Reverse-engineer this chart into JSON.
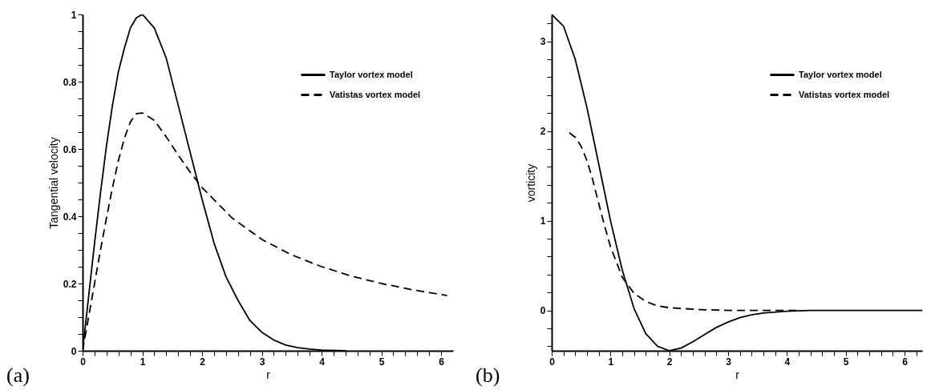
{
  "chart_data": [
    {
      "type": "line",
      "xlabel": "r",
      "ylabel": "Tangential velocity",
      "annotations": [
        "(a)"
      ],
      "legend": "top right",
      "grid": false,
      "marker": "none",
      "xlim": [
        0,
        6.2
      ],
      "ylim": [
        0,
        1
      ],
      "xticks": [
        0,
        {
          "value": 0.2,
          "label": null
        },
        {
          "value": 0.4,
          "label": null
        },
        {
          "value": 0.6,
          "label": null
        },
        {
          "value": 0.8,
          "label": null
        },
        1,
        {
          "value": 1.2,
          "label": null
        },
        {
          "value": 1.4,
          "label": null
        },
        {
          "value": 1.6,
          "label": null
        },
        {
          "value": 1.8,
          "label": null
        },
        2,
        {
          "value": 2.2,
          "label": null
        },
        {
          "value": 2.4,
          "label": null
        },
        {
          "value": 2.6,
          "label": null
        },
        {
          "value": 2.8,
          "label": null
        },
        3,
        {
          "value": 3.2,
          "label": null
        },
        {
          "value": 3.4,
          "label": null
        },
        {
          "value": 3.6,
          "label": null
        },
        {
          "value": 3.8,
          "label": null
        },
        4,
        {
          "value": 4.2,
          "label": null
        },
        {
          "value": 4.4,
          "label": null
        },
        {
          "value": 4.6,
          "label": null
        },
        {
          "value": 4.8,
          "label": null
        },
        5,
        {
          "value": 5.2,
          "label": null
        },
        {
          "value": 5.4,
          "label": null
        },
        {
          "value": 5.6,
          "label": null
        },
        {
          "value": 5.8,
          "label": null
        },
        6
      ],
      "yticks": [
        0,
        {
          "value": 0.05,
          "label": null
        },
        {
          "value": 0.1,
          "label": null
        },
        {
          "value": 0.15,
          "label": null
        },
        0.2,
        {
          "value": 0.25,
          "label": null
        },
        {
          "value": 0.3,
          "label": null
        },
        {
          "value": 0.35,
          "label": null
        },
        0.4,
        {
          "value": 0.45,
          "label": null
        },
        {
          "value": 0.5,
          "label": null
        },
        {
          "value": 0.55,
          "label": null
        },
        0.6,
        {
          "value": 0.65,
          "label": null
        },
        {
          "value": 0.7,
          "label": null
        },
        {
          "value": 0.75,
          "label": null
        },
        0.8,
        {
          "value": 0.85,
          "label": null
        },
        {
          "value": 0.9,
          "label": null
        },
        {
          "value": 0.95,
          "label": null
        },
        1
      ],
      "series": [
        {
          "name": "Taylor vortex model",
          "color": "#000000",
          "line_style": "solid",
          "x": [
            0,
            0.1,
            0.2,
            0.3,
            0.4,
            0.5,
            0.6,
            0.7,
            0.8,
            0.9,
            1,
            1.2,
            1.4,
            1.6,
            1.8,
            2,
            2.2,
            2.4,
            2.6,
            2.8,
            3,
            3.2,
            3.4,
            3.6,
            3.8,
            4,
            4.4
          ],
          "values": [
            0,
            0.16,
            0.32,
            0.47,
            0.61,
            0.73,
            0.83,
            0.9,
            0.96,
            0.99,
            1,
            0.96,
            0.87,
            0.73,
            0.59,
            0.45,
            0.32,
            0.22,
            0.15,
            0.09,
            0.055,
            0.032,
            0.017,
            0.009,
            0.005,
            0.002,
            0
          ]
        },
        {
          "name": "Vatistas vortex model",
          "color": "#000000",
          "line_style": "dashed",
          "x": [
            0,
            0.1,
            0.2,
            0.3,
            0.4,
            0.5,
            0.6,
            0.7,
            0.8,
            0.9,
            1,
            1.2,
            1.4,
            1.6,
            1.8,
            2,
            2.5,
            3,
            3.5,
            4,
            4.5,
            5,
            5.5,
            6,
            6.1
          ],
          "values": [
            0,
            0.1,
            0.2,
            0.3,
            0.395,
            0.485,
            0.566,
            0.632,
            0.68,
            0.705,
            0.707,
            0.685,
            0.636,
            0.582,
            0.531,
            0.485,
            0.395,
            0.331,
            0.285,
            0.25,
            0.222,
            0.2,
            0.182,
            0.167,
            0.164
          ]
        }
      ]
    },
    {
      "type": "line",
      "xlabel": "r",
      "ylabel": "vorticity",
      "annotations": [
        "(b)"
      ],
      "legend": "top right",
      "grid": false,
      "marker": "none",
      "xlim": [
        0,
        6.3
      ],
      "ylim": [
        -0.45,
        3.3
      ],
      "xticks": [
        0,
        {
          "value": 0.2,
          "label": null
        },
        {
          "value": 0.4,
          "label": null
        },
        {
          "value": 0.6,
          "label": null
        },
        {
          "value": 0.8,
          "label": null
        },
        1,
        {
          "value": 1.2,
          "label": null
        },
        {
          "value": 1.4,
          "label": null
        },
        {
          "value": 1.6,
          "label": null
        },
        {
          "value": 1.8,
          "label": null
        },
        2,
        {
          "value": 2.2,
          "label": null
        },
        {
          "value": 2.4,
          "label": null
        },
        {
          "value": 2.6,
          "label": null
        },
        {
          "value": 2.8,
          "label": null
        },
        3,
        {
          "value": 3.2,
          "label": null
        },
        {
          "value": 3.4,
          "label": null
        },
        {
          "value": 3.6,
          "label": null
        },
        {
          "value": 3.8,
          "label": null
        },
        4,
        {
          "value": 4.2,
          "label": null
        },
        {
          "value": 4.4,
          "label": null
        },
        {
          "value": 4.6,
          "label": null
        },
        {
          "value": 4.8,
          "label": null
        },
        5,
        {
          "value": 5.2,
          "label": null
        },
        {
          "value": 5.4,
          "label": null
        },
        {
          "value": 5.6,
          "label": null
        },
        {
          "value": 5.8,
          "label": null
        },
        6,
        {
          "value": 6.2,
          "label": null
        }
      ],
      "yticks": [
        {
          "value": -0.4,
          "label": null
        },
        {
          "value": -0.2,
          "label": null
        },
        0,
        {
          "value": 0.2,
          "label": null
        },
        {
          "value": 0.4,
          "label": null
        },
        {
          "value": 0.6,
          "label": null
        },
        {
          "value": 0.8,
          "label": null
        },
        1,
        {
          "value": 1.2,
          "label": null
        },
        {
          "value": 1.4,
          "label": null
        },
        {
          "value": 1.6,
          "label": null
        },
        {
          "value": 1.8,
          "label": null
        },
        2,
        {
          "value": 2.2,
          "label": null
        },
        {
          "value": 2.4,
          "label": null
        },
        {
          "value": 2.6,
          "label": null
        },
        {
          "value": 2.8,
          "label": null
        },
        3,
        {
          "value": 3.2,
          "label": null
        }
      ],
      "series": [
        {
          "name": "Taylor vortex model",
          "color": "#000000",
          "line_style": "solid",
          "x": [
            0,
            0.2,
            0.4,
            0.6,
            0.8,
            1,
            1.2,
            1.4,
            1.6,
            1.8,
            2,
            2.2,
            2.4,
            2.6,
            2.8,
            3,
            3.2,
            3.4,
            3.6,
            4,
            4.4,
            5,
            6.3
          ],
          "values": [
            3.3,
            3.17,
            2.8,
            2.26,
            1.63,
            1,
            0.45,
            0.02,
            -0.26,
            -0.4,
            -0.45,
            -0.42,
            -0.35,
            -0.27,
            -0.19,
            -0.13,
            -0.08,
            -0.05,
            -0.03,
            -0.01,
            0,
            0,
            0
          ]
        },
        {
          "name": "Vatistas vortex model",
          "color": "#000000",
          "line_style": "dashed",
          "x": [
            0.3,
            0.4,
            0.5,
            0.6,
            0.7,
            0.8,
            0.9,
            1,
            1.2,
            1.4,
            1.6,
            1.8,
            2,
            2.5,
            3,
            3.5,
            4.2
          ],
          "values": [
            1.98,
            1.93,
            1.83,
            1.67,
            1.45,
            1.19,
            0.94,
            0.71,
            0.37,
            0.19,
            0.1,
            0.05,
            0.03,
            0.01,
            0,
            0,
            0
          ]
        }
      ]
    }
  ]
}
